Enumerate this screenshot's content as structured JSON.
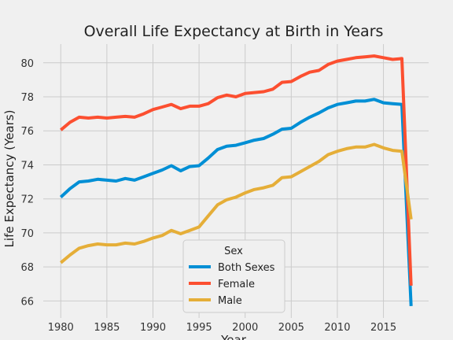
{
  "chart_data": {
    "type": "line",
    "title": "Overall Life Expectancy at Birth in Years",
    "xlabel": "Year",
    "ylabel": "Life Expectancy (Years)",
    "x": [
      1980,
      1981,
      1982,
      1983,
      1984,
      1985,
      1986,
      1987,
      1988,
      1989,
      1990,
      1991,
      1992,
      1993,
      1994,
      1995,
      1996,
      1997,
      1998,
      1999,
      2000,
      2001,
      2002,
      2003,
      2004,
      2005,
      2006,
      2007,
      2008,
      2009,
      2010,
      2011,
      2012,
      2013,
      2014,
      2015,
      2016,
      2017,
      2018
    ],
    "xlim": [
      1978.1,
      2019.9
    ],
    "ylim": [
      65.0,
      81.1
    ],
    "xticks": [
      1980,
      1985,
      1990,
      1995,
      2000,
      2005,
      2010,
      2015
    ],
    "yticks": [
      66,
      68,
      70,
      72,
      74,
      76,
      78,
      80
    ],
    "grid": true,
    "legend": {
      "title": "Sex",
      "placement": "lower-center"
    },
    "series": [
      {
        "name": "Both Sexes",
        "color": "#008fd5",
        "values": [
          72.1,
          72.6,
          73.0,
          73.05,
          73.15,
          73.1,
          73.05,
          73.2,
          73.1,
          73.3,
          73.5,
          73.7,
          73.95,
          73.65,
          73.9,
          73.95,
          74.4,
          74.9,
          75.1,
          75.15,
          75.3,
          75.45,
          75.55,
          75.8,
          76.1,
          76.15,
          76.5,
          76.8,
          77.05,
          77.35,
          77.55,
          77.65,
          77.75,
          77.75,
          77.85,
          77.65,
          77.6,
          77.55,
          65.7
        ]
      },
      {
        "name": "Female",
        "color": "#fc4f30",
        "values": [
          76.05,
          76.5,
          76.8,
          76.75,
          76.8,
          76.75,
          76.8,
          76.85,
          76.8,
          77.0,
          77.25,
          77.4,
          77.55,
          77.3,
          77.45,
          77.45,
          77.6,
          77.95,
          78.1,
          78.0,
          78.2,
          78.25,
          78.3,
          78.45,
          78.85,
          78.9,
          79.2,
          79.45,
          79.55,
          79.9,
          80.1,
          80.2,
          80.3,
          80.35,
          80.4,
          80.3,
          80.2,
          80.25,
          66.9
        ]
      },
      {
        "name": "Male",
        "color": "#e5ae38",
        "values": [
          68.25,
          68.7,
          69.1,
          69.25,
          69.35,
          69.3,
          69.3,
          69.4,
          69.35,
          69.5,
          69.7,
          69.85,
          70.15,
          69.95,
          70.15,
          70.35,
          71.0,
          71.65,
          71.95,
          72.1,
          72.35,
          72.55,
          72.65,
          72.8,
          73.25,
          73.3,
          73.6,
          73.9,
          74.2,
          74.6,
          74.8,
          74.95,
          75.05,
          75.05,
          75.2,
          75.0,
          74.85,
          74.8,
          70.8
        ]
      }
    ]
  }
}
